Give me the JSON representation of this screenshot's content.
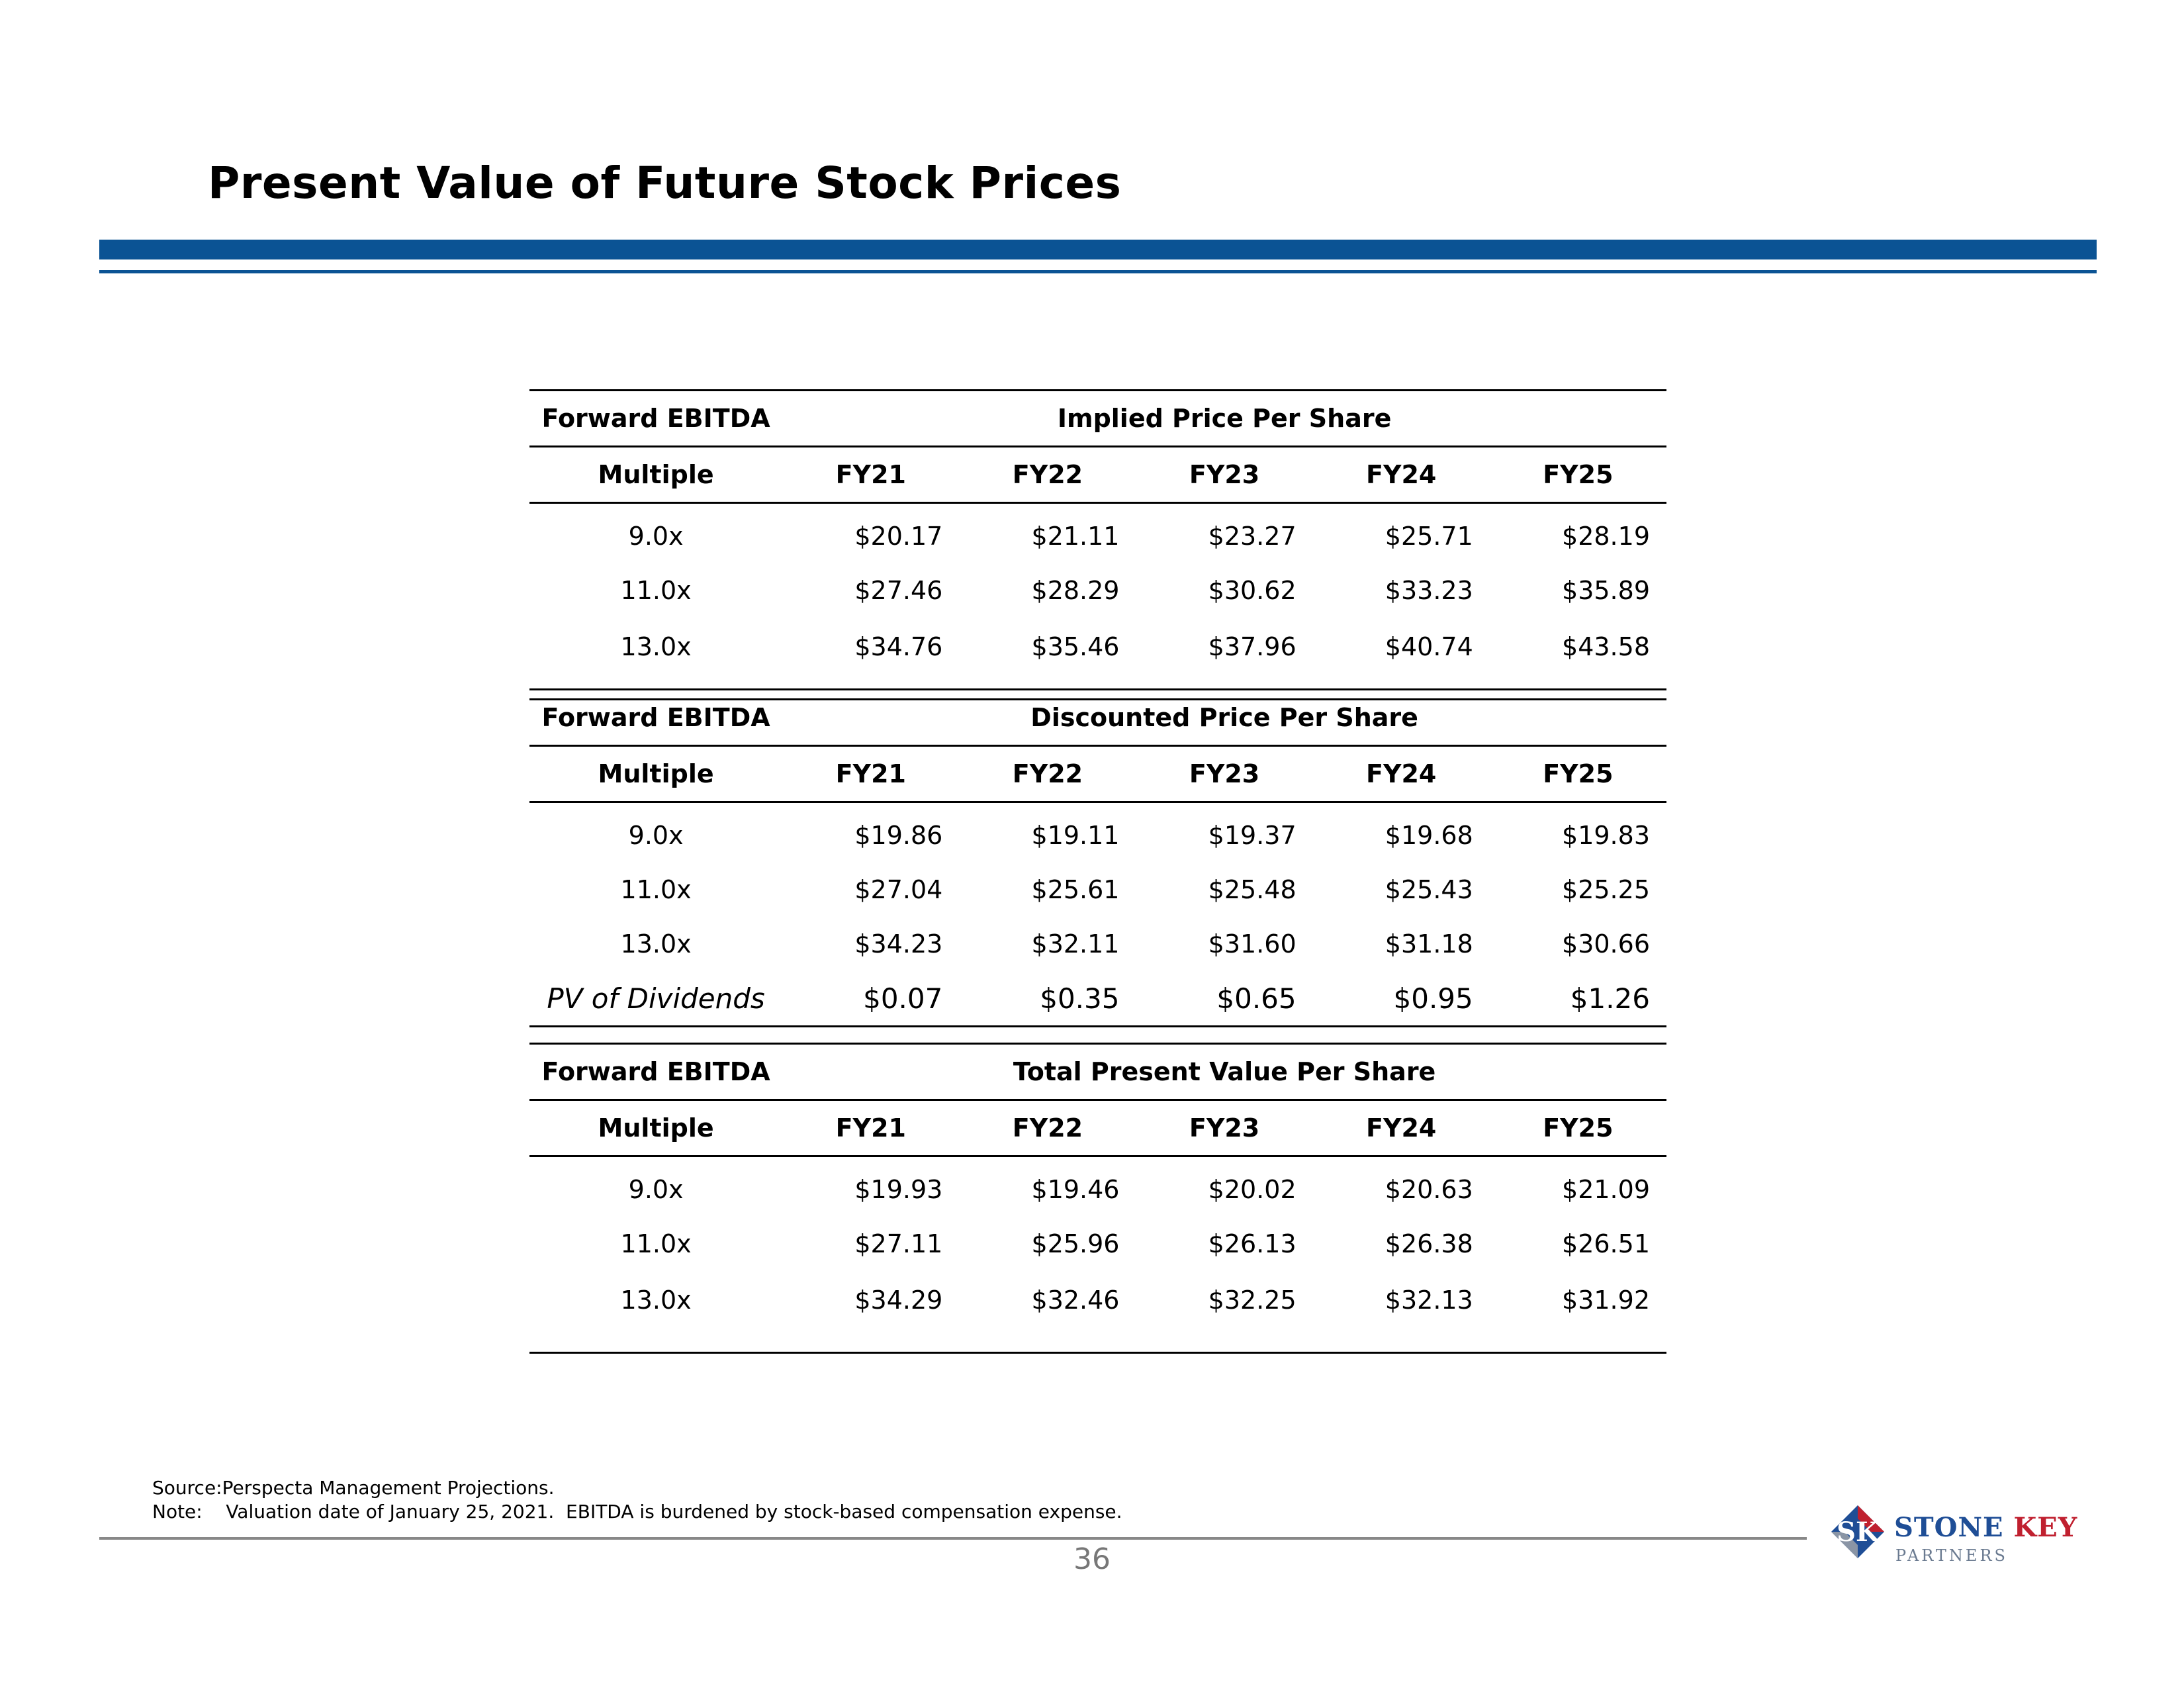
{
  "page": {
    "title": "Present Value of Future Stock Prices",
    "page_number": "36",
    "accent_color": "#0b5394"
  },
  "tables": [
    {
      "label_top": "Forward EBITDA",
      "label_bottom": "Multiple",
      "group_header": "Implied Price Per Share",
      "years": [
        "FY21",
        "FY22",
        "FY23",
        "FY24",
        "FY25"
      ],
      "rows": [
        {
          "multiple": "9.0x",
          "values": [
            "$20.17",
            "$21.11",
            "$23.27",
            "$25.71",
            "$28.19"
          ]
        },
        {
          "multiple": "11.0x",
          "values": [
            "$27.46",
            "$28.29",
            "$30.62",
            "$33.23",
            "$35.89"
          ]
        },
        {
          "multiple": "13.0x",
          "values": [
            "$34.76",
            "$35.46",
            "$37.96",
            "$40.74",
            "$43.58"
          ]
        }
      ]
    },
    {
      "label_top": "Forward EBITDA",
      "label_bottom": "Multiple",
      "group_header": "Discounted Price Per Share",
      "years": [
        "FY21",
        "FY22",
        "FY23",
        "FY24",
        "FY25"
      ],
      "rows": [
        {
          "multiple": "9.0x",
          "values": [
            "$19.86",
            "$19.11",
            "$19.37",
            "$19.68",
            "$19.83"
          ]
        },
        {
          "multiple": "11.0x",
          "values": [
            "$27.04",
            "$25.61",
            "$25.48",
            "$25.43",
            "$25.25"
          ]
        },
        {
          "multiple": "13.0x",
          "values": [
            "$34.23",
            "$32.11",
            "$31.60",
            "$31.18",
            "$30.66"
          ]
        }
      ],
      "extra_row": {
        "label": "PV of Dividends",
        "values": [
          "$0.07",
          "$0.35",
          "$0.65",
          "$0.95",
          "$1.26"
        ]
      }
    },
    {
      "label_top": "Forward EBITDA",
      "label_bottom": "Multiple",
      "group_header": "Total Present Value Per Share",
      "years": [
        "FY21",
        "FY22",
        "FY23",
        "FY24",
        "FY25"
      ],
      "rows": [
        {
          "multiple": "9.0x",
          "values": [
            "$19.93",
            "$19.46",
            "$20.02",
            "$20.63",
            "$21.09"
          ]
        },
        {
          "multiple": "11.0x",
          "values": [
            "$27.11",
            "$25.96",
            "$26.13",
            "$26.38",
            "$26.51"
          ]
        },
        {
          "multiple": "13.0x",
          "values": [
            "$34.29",
            "$32.46",
            "$32.25",
            "$32.13",
            "$31.92"
          ]
        }
      ]
    }
  ],
  "notes": {
    "source_label": "Source:",
    "source_text": "Perspecta Management Projections.",
    "note_label": "Note:",
    "note_text": "Valuation date of January 25, 2021.  EBITDA is burdened by stock-based compensation expense."
  },
  "logo": {
    "mark": "SK",
    "name_part1": "STONE",
    "name_part2": "KEY",
    "subtitle": "PARTNERS",
    "color_blue": "#1f4e96",
    "color_red": "#c0202f"
  }
}
